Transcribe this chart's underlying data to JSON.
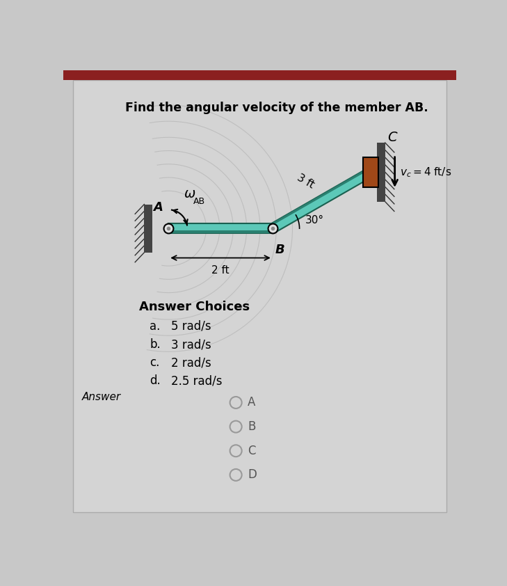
{
  "title": "Find the angular velocity of the member AB.",
  "title_fontsize": 12.5,
  "bg_color": "#c8c8c8",
  "card_color": "#d4d4d4",
  "answer_choices_title": "Answer Choices",
  "answer_choices": [
    {
      "label": "a.",
      "value": "5 rad/s"
    },
    {
      "label": "b.",
      "value": "3 rad/s"
    },
    {
      "label": "c.",
      "value": "2 rad/s"
    },
    {
      "label": "d.",
      "value": "2.5 rad/s"
    }
  ],
  "answer_label": "Answer",
  "radio_labels": [
    "A",
    "B",
    "C",
    "D"
  ],
  "dim_AB_label": "2 ft",
  "dim_BC_label": "3 ft",
  "angle_label": "30°",
  "wall_color": "#444444",
  "hatch_color": "#333333",
  "member_teal": "#5cc8b8",
  "member_dark": "#2a8070",
  "slider_color": "#a04818",
  "pin_color": "#111111",
  "pin_bg": "#e0e0e0"
}
